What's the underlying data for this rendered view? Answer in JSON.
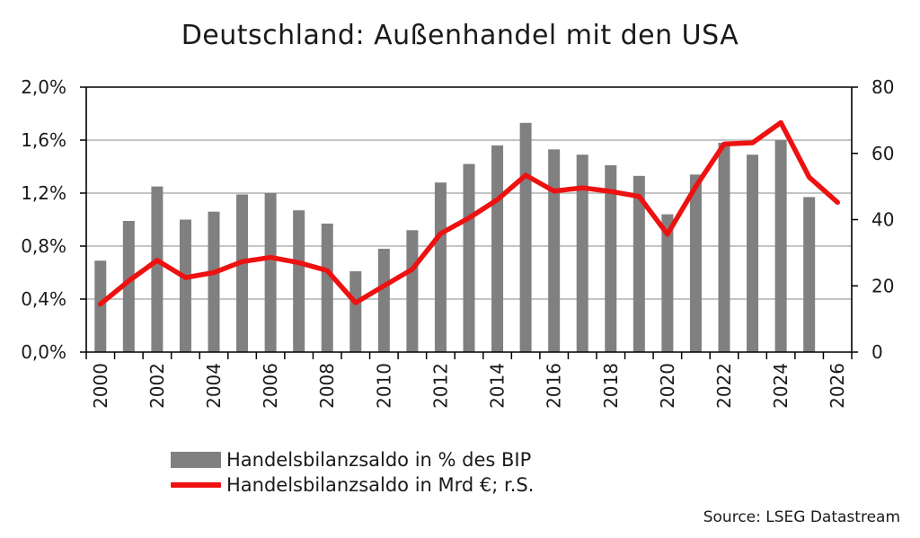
{
  "chart_data": {
    "type": "bar",
    "title": "Deutschland: Außenhandel mit den USA",
    "categories": [
      2000,
      2001,
      2002,
      2003,
      2004,
      2005,
      2006,
      2007,
      2008,
      2009,
      2010,
      2011,
      2012,
      2013,
      2014,
      2015,
      2016,
      2017,
      2018,
      2019,
      2020,
      2021,
      2022,
      2023,
      2024,
      2025,
      2026
    ],
    "x_tick_labels": [
      "2000",
      "2002",
      "2004",
      "2006",
      "2008",
      "2010",
      "2012",
      "2014",
      "2016",
      "2018",
      "2020",
      "2022",
      "2024",
      "2026"
    ],
    "y_left": {
      "ylim": [
        0,
        2.0
      ],
      "ticks": [
        "0,0%",
        "0,4%",
        "0,8%",
        "1,2%",
        "1,6%",
        "2,0%"
      ]
    },
    "y_right": {
      "ylim": [
        0,
        80
      ],
      "ticks": [
        "0",
        "20",
        "40",
        "60",
        "80"
      ]
    },
    "grid": true,
    "legend_position": "bottom",
    "series": [
      {
        "name": "Handelsbilanzsaldo in % des BIP",
        "type": "bar",
        "axis": "left",
        "color": "#808080",
        "values": [
          0.69,
          0.99,
          1.25,
          1.0,
          1.06,
          1.19,
          1.2,
          1.07,
          0.97,
          0.61,
          0.78,
          0.92,
          1.28,
          1.42,
          1.56,
          1.73,
          1.53,
          1.49,
          1.41,
          1.33,
          1.04,
          1.34,
          1.58,
          1.49,
          1.6,
          1.17,
          null
        ]
      },
      {
        "name": "Handelsbilanzsaldo in Mrd €; r.S.",
        "type": "line",
        "axis": "right",
        "color": "#ee1111",
        "values": [
          14.5,
          21.5,
          27.7,
          22.5,
          24.0,
          27.3,
          28.6,
          27.0,
          24.6,
          14.9,
          20.0,
          25.0,
          35.8,
          40.5,
          46.0,
          53.4,
          48.6,
          49.6,
          48.5,
          47.0,
          35.6,
          50.0,
          62.8,
          63.2,
          69.3,
          52.8,
          45.2
        ]
      }
    ]
  },
  "source": "Source: LSEG Datastream"
}
